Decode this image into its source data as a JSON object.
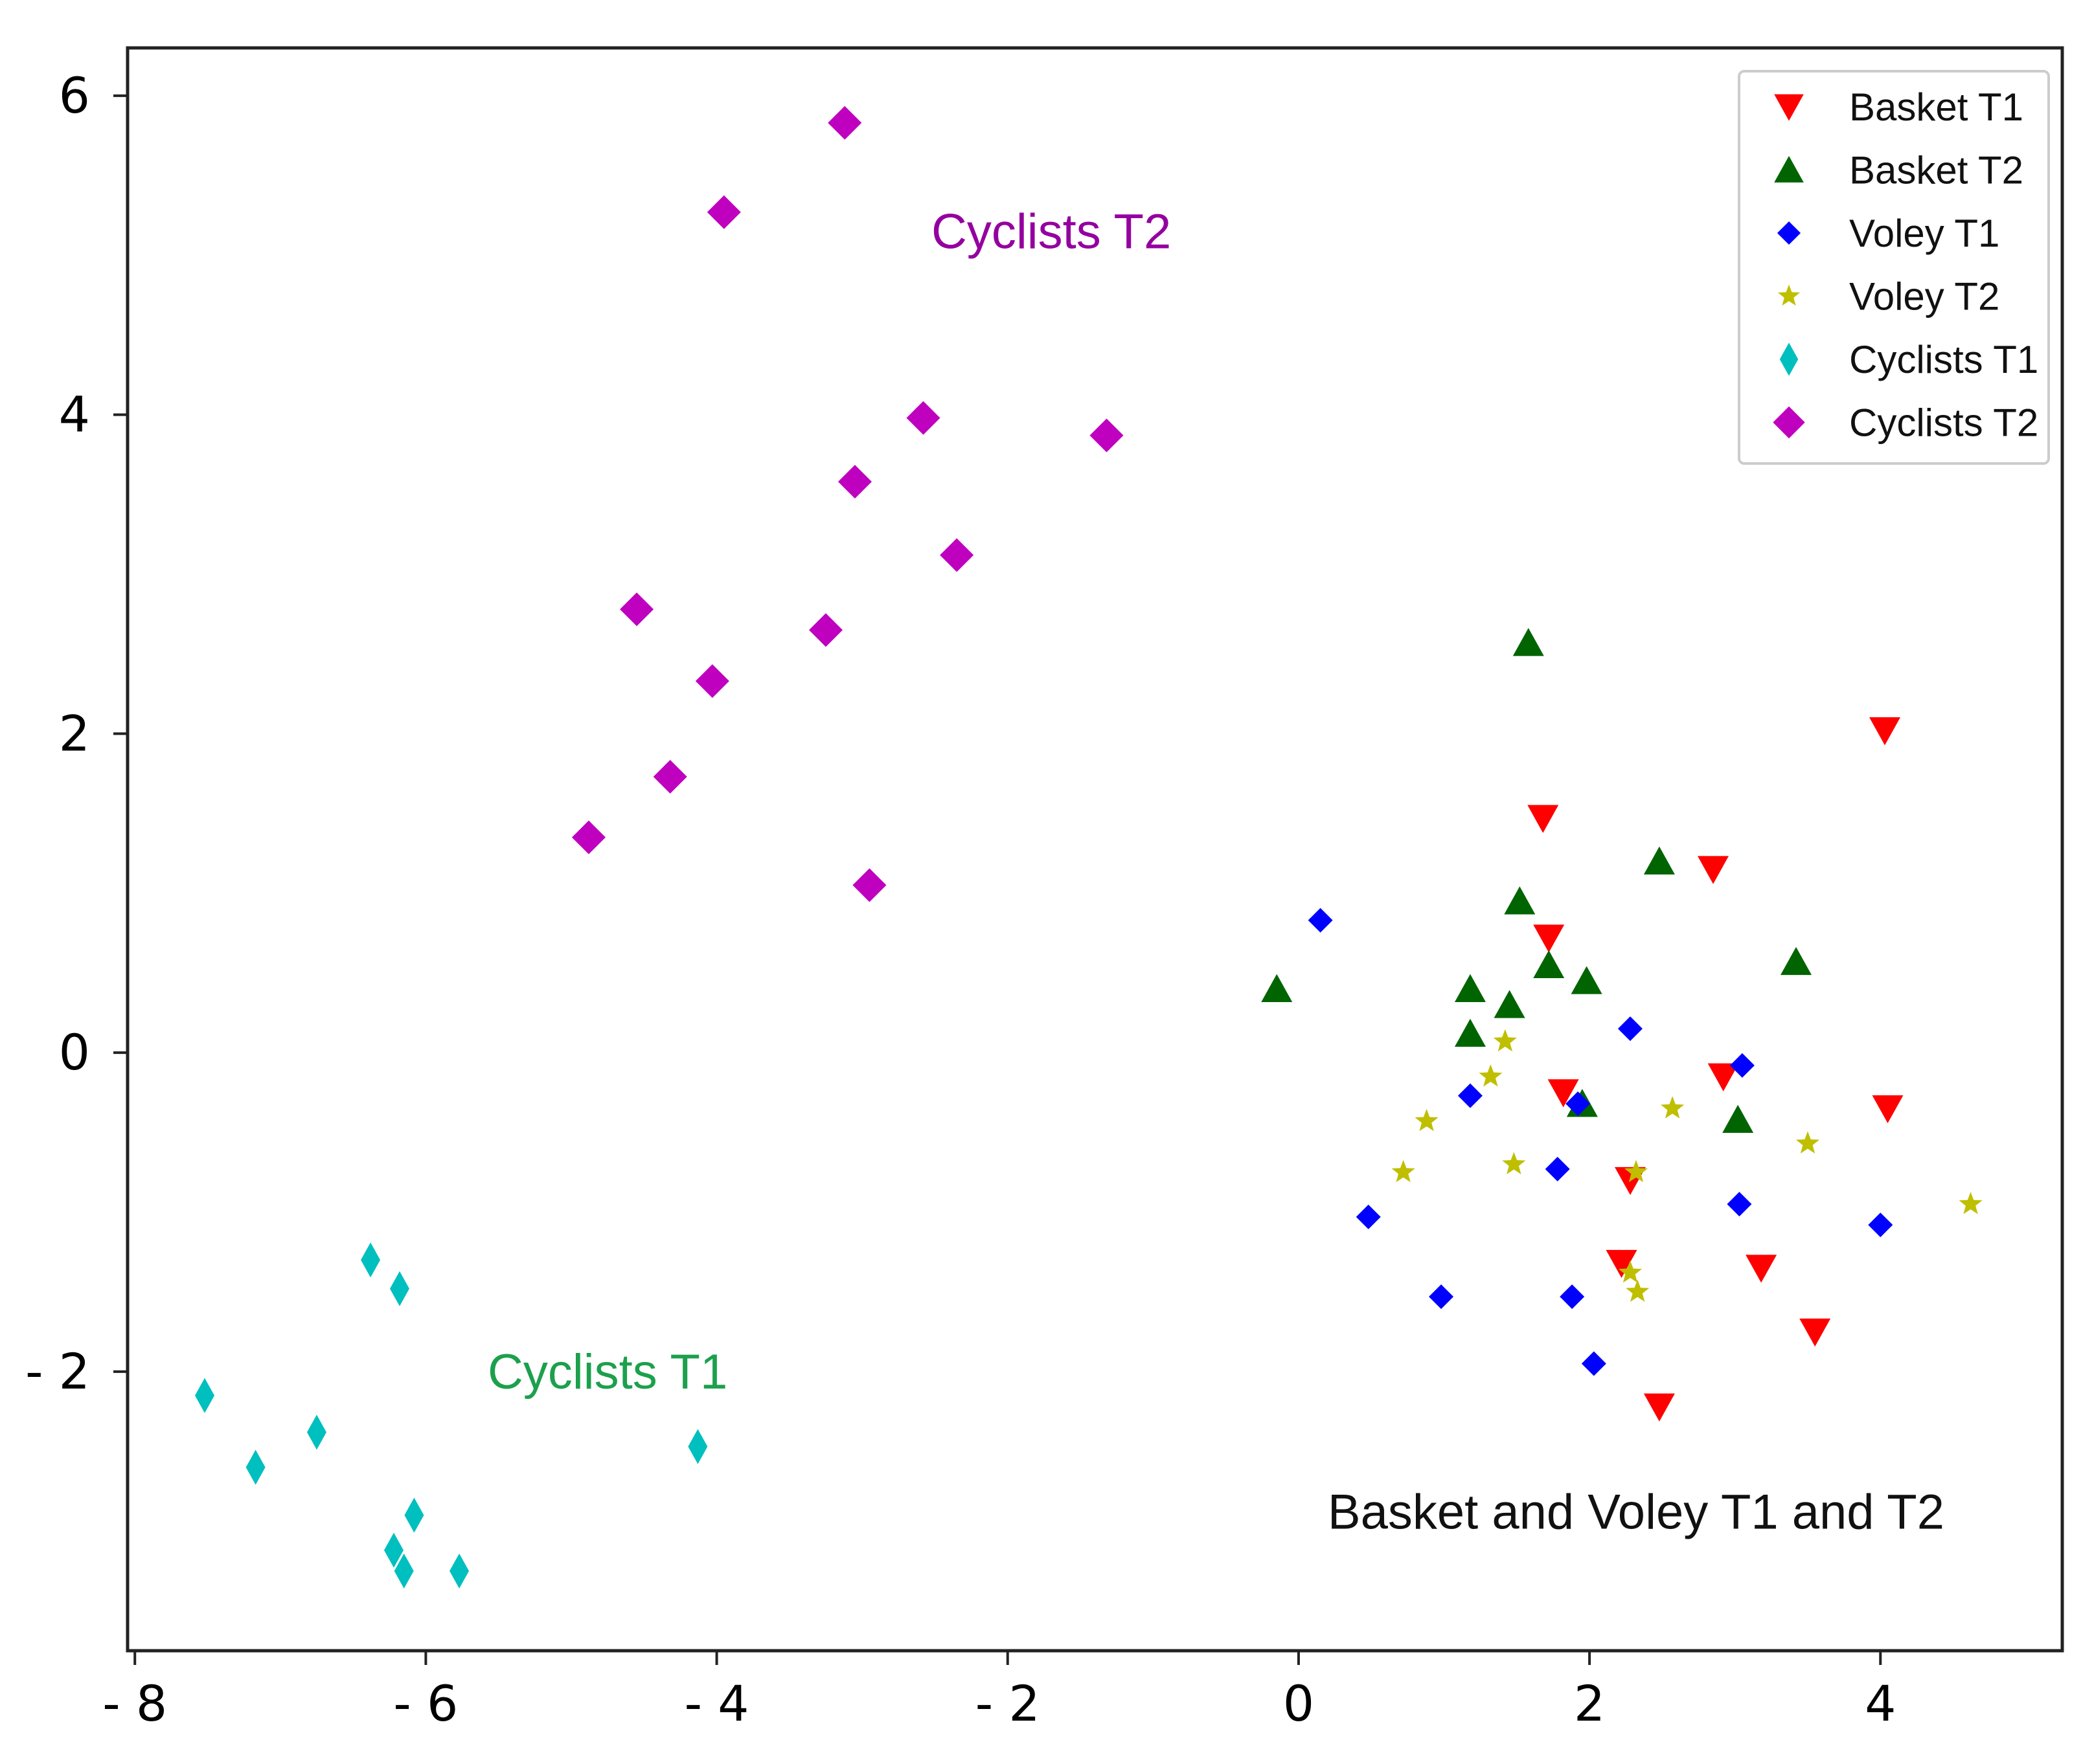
{
  "chart_data": {
    "type": "scatter",
    "title": "",
    "xlabel": "",
    "ylabel": "",
    "xlim": [
      -8.05,
      5.25
    ],
    "ylim": [
      -3.75,
      6.3
    ],
    "xticks": [
      -8,
      -6,
      -4,
      -2,
      0,
      2,
      4
    ],
    "xtick_labels": [
      "- 8",
      "- 6",
      "- 4",
      "- 2",
      "0",
      "2",
      "4"
    ],
    "yticks": [
      -2,
      0,
      2,
      4,
      6
    ],
    "ytick_labels": [
      "- 2",
      "0",
      "2",
      "4",
      "6"
    ],
    "grid": false,
    "legend_position": "top-right",
    "series": [
      {
        "name": "Basket T1",
        "marker": "triangle-down",
        "color": "#ff0000",
        "points": [
          [
            4.03,
            2.02
          ],
          [
            1.68,
            1.47
          ],
          [
            2.85,
            1.15
          ],
          [
            1.72,
            0.72
          ],
          [
            2.92,
            -0.15
          ],
          [
            4.05,
            -0.35
          ],
          [
            1.82,
            -0.25
          ],
          [
            2.28,
            -0.8
          ],
          [
            2.22,
            -1.32
          ],
          [
            3.18,
            -1.35
          ],
          [
            3.55,
            -1.75
          ],
          [
            2.48,
            -2.22
          ]
        ]
      },
      {
        "name": "Basket T2",
        "marker": "triangle-up",
        "color": "#006400",
        "points": [
          [
            1.58,
            2.57
          ],
          [
            -0.15,
            0.4
          ],
          [
            1.18,
            0.4
          ],
          [
            1.45,
            0.3
          ],
          [
            1.72,
            0.55
          ],
          [
            1.98,
            0.45
          ],
          [
            2.48,
            1.2
          ],
          [
            1.52,
            0.95
          ],
          [
            3.42,
            0.57
          ],
          [
            1.18,
            0.12
          ],
          [
            1.95,
            -0.32
          ],
          [
            3.02,
            -0.42
          ]
        ]
      },
      {
        "name": "Voley T1",
        "marker": "plus-diamond",
        "color": "#0000ff",
        "points": [
          [
            0.15,
            0.83
          ],
          [
            2.28,
            0.15
          ],
          [
            3.05,
            -0.08
          ],
          [
            1.18,
            -0.27
          ],
          [
            1.92,
            -0.32
          ],
          [
            1.78,
            -0.73
          ],
          [
            0.48,
            -1.03
          ],
          [
            3.03,
            -0.95
          ],
          [
            4.0,
            -1.08
          ],
          [
            0.98,
            -1.53
          ],
          [
            1.88,
            -1.53
          ],
          [
            2.03,
            -1.95
          ]
        ]
      },
      {
        "name": "Voley T2",
        "marker": "star",
        "color": "#bfbf00",
        "points": [
          [
            1.42,
            0.07
          ],
          [
            1.32,
            -0.15
          ],
          [
            0.88,
            -0.43
          ],
          [
            2.57,
            -0.35
          ],
          [
            0.72,
            -0.75
          ],
          [
            1.48,
            -0.7
          ],
          [
            2.32,
            -0.75
          ],
          [
            3.5,
            -0.57
          ],
          [
            4.62,
            -0.95
          ],
          [
            2.28,
            -1.38
          ],
          [
            2.33,
            -1.5
          ]
        ]
      },
      {
        "name": "Cyclists T1",
        "marker": "thin-diamond",
        "color": "#00bfbf",
        "points": [
          [
            -6.38,
            -1.3
          ],
          [
            -6.18,
            -1.48
          ],
          [
            -7.52,
            -2.15
          ],
          [
            -6.75,
            -2.38
          ],
          [
            -7.17,
            -2.6
          ],
          [
            -4.13,
            -2.47
          ],
          [
            -6.08,
            -2.9
          ],
          [
            -6.22,
            -3.12
          ],
          [
            -6.15,
            -3.25
          ],
          [
            -5.77,
            -3.25
          ]
        ]
      },
      {
        "name": "Cyclists T2",
        "marker": "diamond",
        "color": "#bf00bf",
        "points": [
          [
            -3.12,
            5.83
          ],
          [
            -3.95,
            5.27
          ],
          [
            -2.58,
            3.98
          ],
          [
            -1.32,
            3.87
          ],
          [
            -3.05,
            3.58
          ],
          [
            -2.35,
            3.12
          ],
          [
            -4.55,
            2.78
          ],
          [
            -3.25,
            2.65
          ],
          [
            -4.03,
            2.33
          ],
          [
            -4.32,
            1.73
          ],
          [
            -4.88,
            1.35
          ],
          [
            -2.95,
            1.05
          ]
        ]
      }
    ],
    "annotations": [
      {
        "text": "Cyclists T2",
        "x": -1.7,
        "y": 5.15,
        "color": "#9400a0"
      },
      {
        "text": "Cyclists T1",
        "x": -4.75,
        "y": -2.0,
        "color": "#1ca04c"
      },
      {
        "text": "Basket and Voley T1 and T2",
        "x": 2.32,
        "y": -2.88,
        "color": "#111111"
      }
    ]
  }
}
